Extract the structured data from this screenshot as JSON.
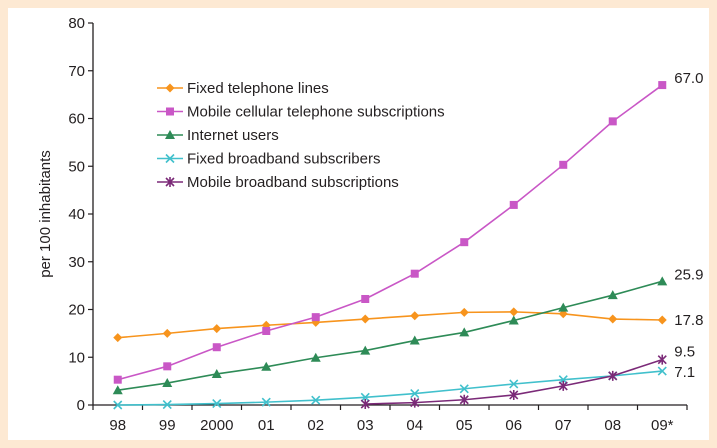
{
  "chart_data": {
    "type": "line",
    "title": "",
    "xlabel": "",
    "ylabel": "per 100 inhabitants",
    "categories": [
      "98",
      "99",
      "2000",
      "01",
      "02",
      "03",
      "04",
      "05",
      "06",
      "07",
      "08",
      "09*"
    ],
    "ylim": [
      0,
      80
    ],
    "yticks": [
      0,
      10,
      20,
      30,
      40,
      50,
      60,
      70,
      80
    ],
    "grid": false,
    "legend_position": "upper-left",
    "series": [
      {
        "name": "Fixed telephone lines",
        "color": "#f7941d",
        "marker": "diamond",
        "values": [
          14.1,
          15.0,
          16.0,
          16.7,
          17.3,
          18.0,
          18.7,
          19.4,
          19.5,
          19.1,
          18.0,
          17.8
        ],
        "end_label": "17.8"
      },
      {
        "name": "Mobile cellular telephone subscriptions",
        "color": "#c957c6",
        "marker": "square",
        "values": [
          5.3,
          8.1,
          12.1,
          15.5,
          18.4,
          22.2,
          27.5,
          34.1,
          41.9,
          50.3,
          59.4,
          67.0
        ],
        "end_label": "67.0"
      },
      {
        "name": "Internet users",
        "color": "#2e8b57",
        "marker": "triangle",
        "values": [
          3.1,
          4.6,
          6.5,
          8.0,
          9.9,
          11.4,
          13.5,
          15.2,
          17.7,
          20.4,
          23.0,
          25.9
        ],
        "end_label": "25.9"
      },
      {
        "name": "Fixed broadband subscribers",
        "color": "#41c0cc",
        "marker": "x",
        "values": [
          0.0,
          0.1,
          0.3,
          0.6,
          1.0,
          1.6,
          2.4,
          3.4,
          4.4,
          5.3,
          6.1,
          7.1
        ],
        "end_label": "7.1"
      },
      {
        "name": "Mobile broadband subscriptions",
        "color": "#7b2a78",
        "marker": "star",
        "values": [
          null,
          null,
          null,
          null,
          null,
          0.2,
          0.5,
          1.1,
          2.1,
          4.0,
          6.1,
          9.5
        ],
        "end_label": "9.5"
      }
    ]
  }
}
